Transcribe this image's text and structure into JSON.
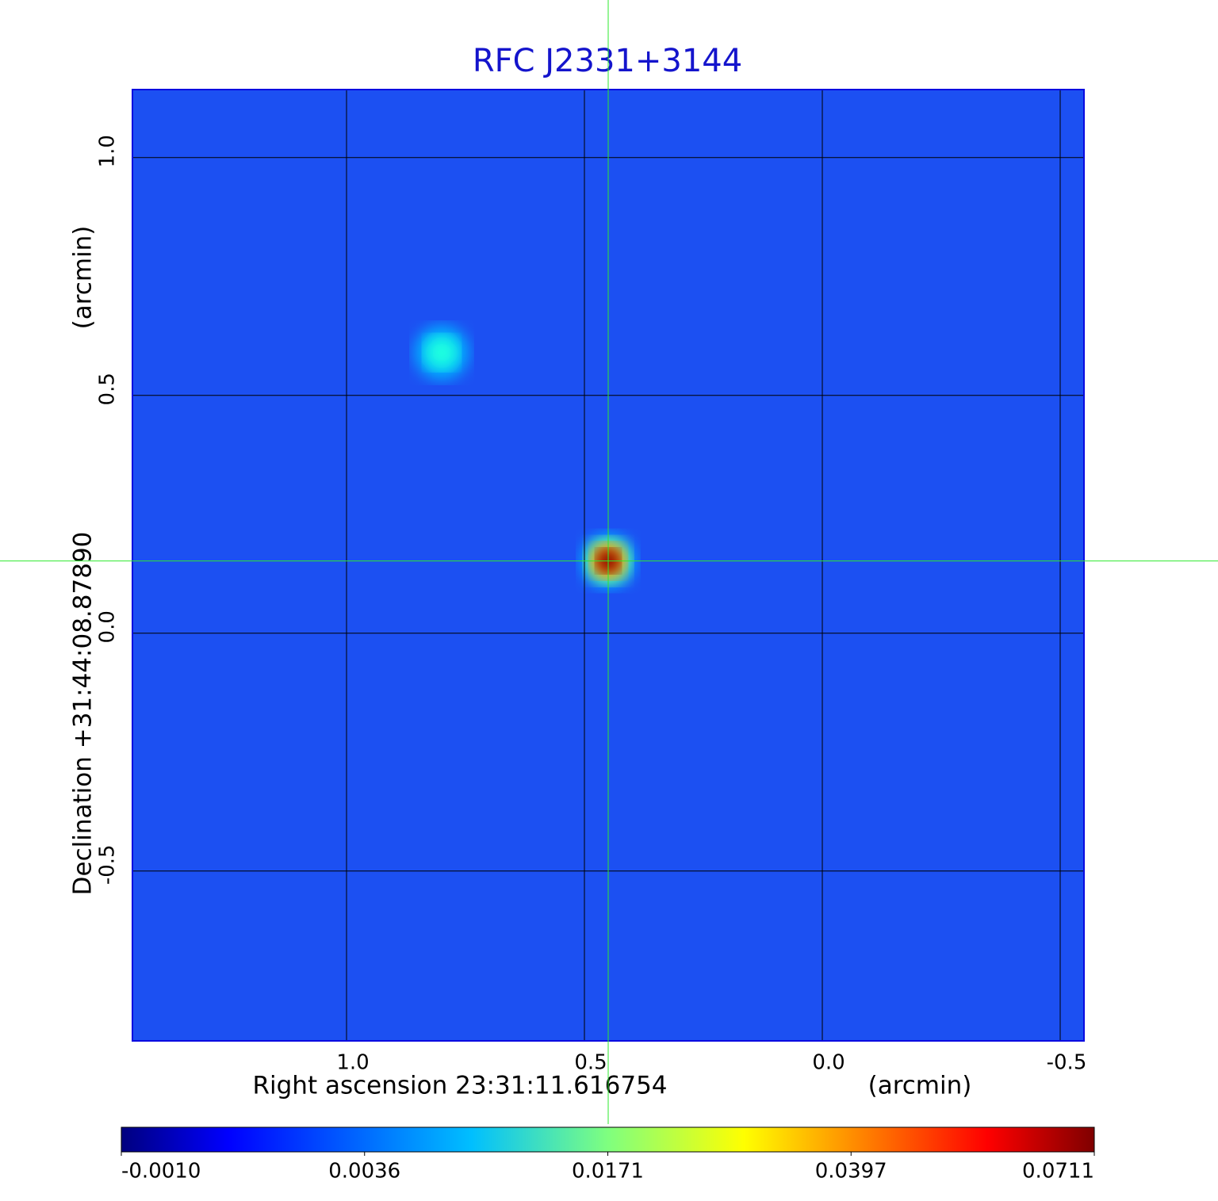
{
  "chart_data": {
    "type": "image",
    "title": "RFC J2331+3144",
    "x_label": "Right ascension  23:31:11.616754",
    "x_unit": "(arcmin)",
    "y_label": "Declination  +31:44:08.87890",
    "y_unit": "(arcmin)",
    "xlim": [
      1.45,
      -0.55
    ],
    "ylim": [
      -0.857,
      1.143
    ],
    "xticks": [
      {
        "value": 1,
        "label": "1.0"
      },
      0.5,
      {
        "value": 0,
        "label": "0.0"
      },
      -0.5
    ],
    "yticks": [
      {
        "value": 1,
        "label": "1.0"
      },
      0.5,
      {
        "value": 0,
        "label": "0.0"
      },
      -0.5
    ],
    "grid": true,
    "colormap": "jet",
    "colorbar_ticks": [
      {
        "value": -0.001,
        "label": "-0.0010"
      },
      {
        "value": 0.0036,
        "label": "0.0036"
      },
      {
        "value": 0.0171,
        "label": "0.0171"
      },
      {
        "value": 0.0397,
        "label": "0.0397"
      },
      {
        "value": 0.0711,
        "label": "0.0711"
      }
    ],
    "crosshair": {
      "x": 0.45,
      "y": 0.152
    },
    "sources": {
      "x": [
        0.45,
        0.8
      ],
      "y": [
        0.152,
        0.59
      ],
      "values": [
        0.0711,
        0.012
      ]
    }
  }
}
